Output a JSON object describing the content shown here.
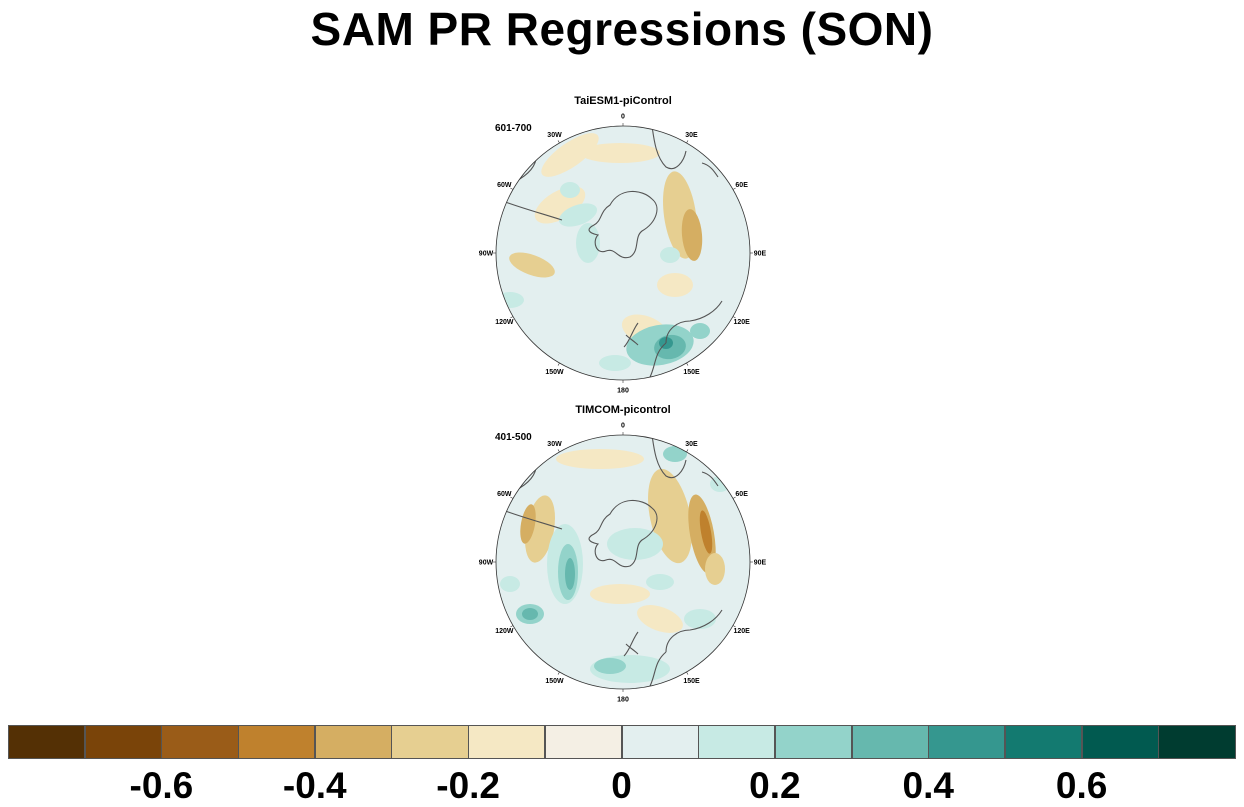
{
  "title": "SAM PR Regressions (SON)",
  "panels": [
    {
      "title": "TaiESM1-piControl",
      "years": "601-700",
      "lon_labels": [
        "0",
        "30E",
        "60E",
        "90E",
        "120E",
        "150E",
        "180",
        "150W",
        "120W",
        "90W",
        "60W",
        "30W"
      ]
    },
    {
      "title": "TIMCOM-picontrol",
      "years": "401-500",
      "lon_labels": [
        "0",
        "30E",
        "60E",
        "90E",
        "120E",
        "150E",
        "180",
        "150W",
        "120W",
        "90W",
        "60W",
        "30W"
      ]
    }
  ],
  "colorbar": {
    "colors": [
      "#543005",
      "#7a4409",
      "#9a5c18",
      "#bf812d",
      "#d5ae62",
      "#e6cf91",
      "#f5e8c4",
      "#f4efe4",
      "#e3efef",
      "#c7eae4",
      "#93d3ca",
      "#66b8ae",
      "#35978f",
      "#137a70",
      "#015a50",
      "#003c30"
    ],
    "tick_labels": [
      "-0.6",
      "-0.4",
      "-0.2",
      "0",
      "0.2",
      "0.4",
      "0.6"
    ]
  }
}
